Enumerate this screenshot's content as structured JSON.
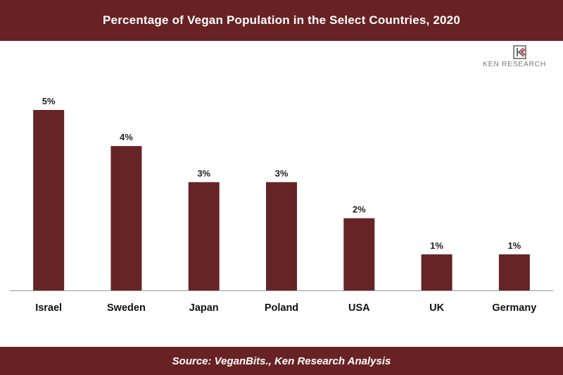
{
  "header": {
    "title": "Percentage of Vegan Population in the Select Countries, 2020"
  },
  "logo": {
    "text": "KEN RESEARCH"
  },
  "footer": {
    "source": "Source: VeganBits., Ken Research Analysis"
  },
  "colors": {
    "band": "#692224",
    "bar": "#662426",
    "axis": "#999999"
  },
  "chart_data": {
    "type": "bar",
    "title": "Percentage of Vegan Population in the Select Countries, 2020",
    "categories": [
      "Israel",
      "Sweden",
      "Japan",
      "Poland",
      "USA",
      "UK",
      "Germany"
    ],
    "values": [
      5,
      4,
      3,
      3,
      2,
      1,
      1
    ],
    "data_labels": [
      "5%",
      "4%",
      "3%",
      "3%",
      "2%",
      "1%",
      "1%"
    ],
    "unit": "%",
    "ylim": [
      0,
      5
    ],
    "grid": false,
    "legend": "none"
  }
}
